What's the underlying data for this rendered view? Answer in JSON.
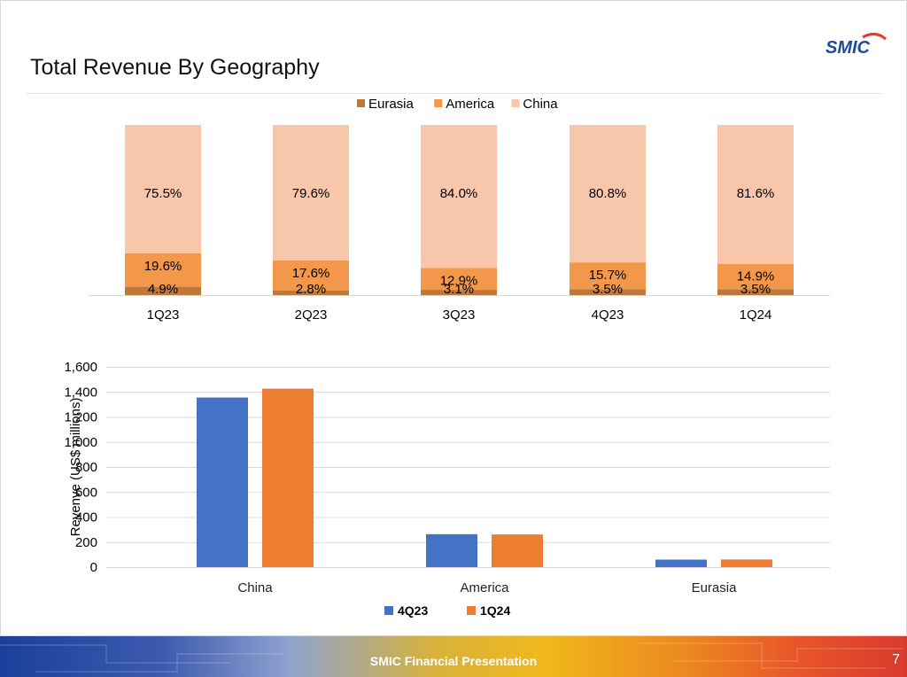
{
  "slide": {
    "title": "Total Revenue By Geography",
    "logo_text": "SMIC",
    "footer_text": "SMIC Financial Presentation",
    "page_number": "7"
  },
  "colors": {
    "eurasia": "#c0783a",
    "america": "#f3984a",
    "china": "#f8c6ab",
    "q4_23": "#4472c4",
    "q1_24": "#ed7d31",
    "logo_blue": "#1e4ba0",
    "logo_red": "#e03a2e"
  },
  "chart_data": [
    {
      "type": "bar",
      "stacked": true,
      "percent": true,
      "categories": [
        "1Q23",
        "2Q23",
        "3Q23",
        "4Q23",
        "1Q24"
      ],
      "series": [
        {
          "name": "Eurasia",
          "values": [
            4.9,
            2.8,
            3.1,
            3.5,
            3.5
          ],
          "labels": [
            "4.9%",
            "2.8%",
            "3.1%",
            "3.5%",
            "3.5%"
          ]
        },
        {
          "name": "America",
          "values": [
            19.6,
            17.6,
            12.9,
            15.7,
            14.9
          ],
          "labels": [
            "19.6%",
            "17.6%",
            "12.9%",
            "15.7%",
            "14.9%"
          ]
        },
        {
          "name": "China",
          "values": [
            75.5,
            79.6,
            84.0,
            80.8,
            81.6
          ],
          "labels": [
            "75.5%",
            "79.6%",
            "84.0%",
            "80.8%",
            "81.6%"
          ]
        }
      ],
      "legend_position": "top",
      "grid": false
    },
    {
      "type": "bar",
      "categories": [
        "China",
        "America",
        "Eurasia"
      ],
      "series": [
        {
          "name": "4Q23",
          "values": [
            1355,
            263,
            60
          ]
        },
        {
          "name": "1Q24",
          "values": [
            1426,
            261,
            61
          ]
        }
      ],
      "ylabel": "Revenve (US$  millions)",
      "ylim": [
        0,
        1600
      ],
      "yticks": [
        "0",
        "200",
        "400",
        "600",
        "800",
        "1,000",
        "1,200",
        "1,400",
        "1,600"
      ],
      "legend_position": "bottom",
      "grid": true
    }
  ]
}
